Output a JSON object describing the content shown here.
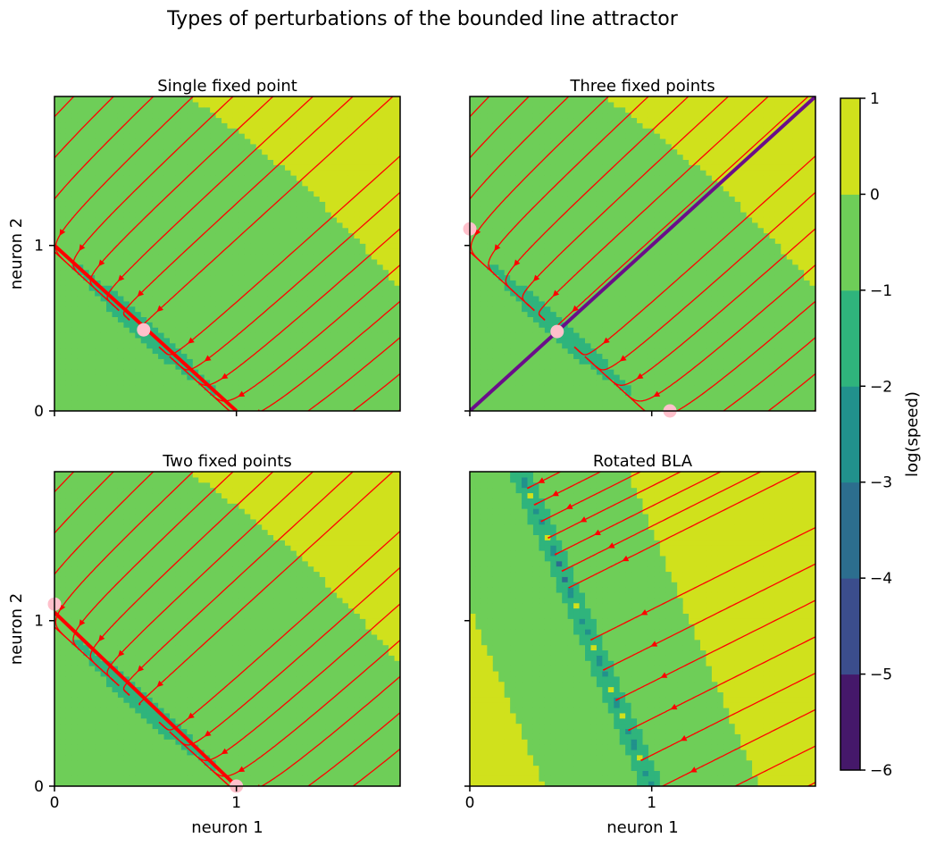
{
  "figure": {
    "title": "Types of perturbations of the bounded line attractor"
  },
  "colorbar": {
    "label": "log(speed)",
    "ticks": [
      "1",
      "0",
      "−1",
      "−2",
      "−3",
      "−4",
      "−5",
      "−6"
    ],
    "levels": [
      {
        "from": -6,
        "to": -5,
        "color": "#45186a"
      },
      {
        "from": -5,
        "to": -4,
        "color": "#3b4d8c"
      },
      {
        "from": -4,
        "to": -3,
        "color": "#2c6e8e"
      },
      {
        "from": -3,
        "to": -2,
        "color": "#21918c"
      },
      {
        "from": -2,
        "to": -1,
        "color": "#2fb47c"
      },
      {
        "from": -1,
        "to": 0,
        "color": "#6ece58"
      },
      {
        "from": 0,
        "to": 1,
        "color": "#d0e11c"
      }
    ]
  },
  "colors": {
    "streamline": "#ff0000",
    "line_attractor": "#ff0000",
    "separatrix": "#6a0e8a",
    "fixed_point": "#ffc0cb",
    "frame": "#000000"
  },
  "chart_data": [
    {
      "type": "streamplot",
      "title": "Single fixed point",
      "xlabel": "",
      "ylabel": "neuron 2",
      "xlim": [
        0,
        1.9
      ],
      "ylim": [
        0,
        1.9
      ],
      "xticks": [
        "0",
        "1"
      ],
      "yticks": [
        "0",
        "1"
      ],
      "show_xtick_labels": false,
      "show_ytick_labels": true,
      "fixed_points": [
        [
          0.49,
          0.49
        ]
      ],
      "attractor_segment": [
        [
          0,
          1
        ],
        [
          1,
          0
        ]
      ],
      "separatrix": null,
      "slow_manifold": "diagonal"
    },
    {
      "type": "streamplot",
      "title": "Three fixed points",
      "xlabel": "",
      "ylabel": "",
      "xlim": [
        0,
        1.9
      ],
      "ylim": [
        0,
        1.9
      ],
      "xticks": [
        "0",
        "1"
      ],
      "yticks": [
        "0",
        "1"
      ],
      "show_xtick_labels": false,
      "show_ytick_labels": false,
      "fixed_points": [
        [
          0,
          1.1
        ],
        [
          0.48,
          0.48
        ],
        [
          1.1,
          0
        ]
      ],
      "attractor_segment": null,
      "separatrix": [
        [
          0,
          0
        ],
        [
          1.9,
          1.9
        ]
      ],
      "slow_manifold": "diagonal"
    },
    {
      "type": "streamplot",
      "title": "Two fixed points",
      "xlabel": "neuron 1",
      "ylabel": "neuron 2",
      "xlim": [
        0,
        1.9
      ],
      "ylim": [
        0,
        1.9
      ],
      "xticks": [
        "0",
        "1"
      ],
      "yticks": [
        "0",
        "1"
      ],
      "show_xtick_labels": true,
      "show_ytick_labels": true,
      "fixed_points": [
        [
          0,
          1.1
        ],
        [
          1.0,
          0
        ]
      ],
      "attractor_segment": [
        [
          0,
          1.05
        ],
        [
          1.0,
          0
        ]
      ],
      "separatrix": null,
      "slow_manifold": "diagonal"
    },
    {
      "type": "streamplot",
      "title": "Rotated BLA",
      "xlabel": "neuron 1",
      "ylabel": "",
      "xlim": [
        0,
        1.9
      ],
      "ylim": [
        0,
        1.9
      ],
      "xticks": [
        "0",
        "1"
      ],
      "yticks": [
        "0",
        "1"
      ],
      "show_xtick_labels": true,
      "show_ytick_labels": false,
      "fixed_points": [],
      "attractor_segment": null,
      "separatrix": null,
      "slow_manifold": "rotated"
    }
  ]
}
